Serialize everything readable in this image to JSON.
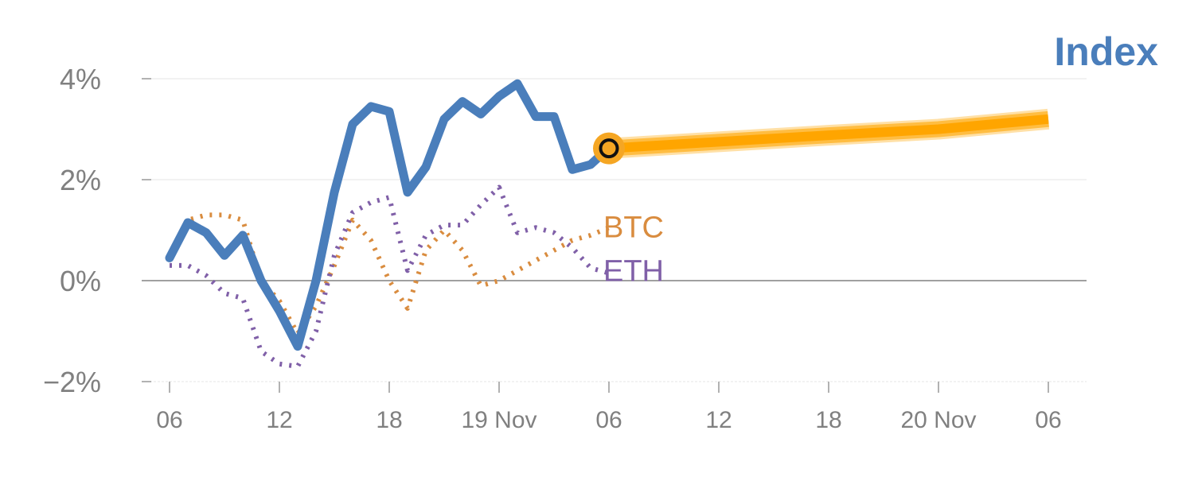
{
  "chart_data": {
    "type": "line",
    "title": "Index",
    "y_ticks": [
      "4%",
      "2%",
      "0%",
      "−2%"
    ],
    "y_tick_values": [
      4,
      2,
      0,
      -2
    ],
    "ylim": [
      -2,
      4
    ],
    "x_ticks": [
      "06",
      "12",
      "18",
      "19 Nov",
      "06",
      "12",
      "18",
      "20 Nov",
      "06"
    ],
    "x_tick_hours": [
      6,
      12,
      18,
      24,
      30,
      36,
      42,
      48,
      54
    ],
    "xlim_hours": [
      5,
      56
    ],
    "x_unit": "hours since 00:00, 18 Nov",
    "grid": true,
    "colors": {
      "index": "#4a7ebb",
      "btc": "#d98c3f",
      "eth": "#8060a8",
      "forecast": "#ffa500",
      "marker_fill": "#f5a623",
      "grid": "#e6e6e6",
      "zero_line": "#808080"
    },
    "series": [
      {
        "name": "Index",
        "style": "solid",
        "hours": [
          6,
          7,
          8,
          9,
          10,
          11,
          12,
          13,
          14,
          15,
          16,
          17,
          18,
          19,
          20,
          21,
          22,
          23,
          24,
          25,
          26,
          27,
          28,
          29,
          29.6
        ],
        "values": [
          0.45,
          1.15,
          0.95,
          0.5,
          0.9,
          0.0,
          -0.6,
          -1.3,
          0.0,
          1.75,
          3.1,
          3.45,
          3.35,
          1.75,
          2.25,
          3.2,
          3.55,
          3.3,
          3.65,
          3.9,
          3.25,
          3.25,
          2.2,
          2.3,
          2.5
        ]
      },
      {
        "name": "BTC",
        "style": "dotted",
        "hours": [
          6,
          7,
          8,
          9,
          10,
          11,
          12,
          13,
          14,
          15,
          16,
          17,
          18,
          19,
          20,
          21,
          22,
          23,
          24,
          25,
          26,
          27,
          28,
          29,
          30
        ],
        "values": [
          0.4,
          1.2,
          1.3,
          1.3,
          1.2,
          0.0,
          -0.4,
          -1.05,
          -0.5,
          0.3,
          1.2,
          0.8,
          0.0,
          -0.55,
          0.6,
          1.0,
          0.6,
          -0.1,
          0.0,
          0.2,
          0.4,
          0.6,
          0.8,
          0.9,
          1.05
        ]
      },
      {
        "name": "ETH",
        "style": "dotted",
        "hours": [
          6,
          7,
          8,
          9,
          10,
          11,
          12,
          13,
          14,
          15,
          16,
          17,
          18,
          19,
          20,
          21,
          22,
          23,
          24,
          25,
          26,
          27,
          28,
          29,
          30
        ],
        "values": [
          0.3,
          0.3,
          0.1,
          -0.25,
          -0.35,
          -1.4,
          -1.65,
          -1.7,
          -1.0,
          0.5,
          1.35,
          1.55,
          1.65,
          0.2,
          0.9,
          1.1,
          1.1,
          1.5,
          1.85,
          0.95,
          1.05,
          0.95,
          0.65,
          0.25,
          0.15
        ]
      },
      {
        "name": "Index forecast",
        "style": "thick-band",
        "hours": [
          30,
          36,
          42,
          48,
          54
        ],
        "values": [
          2.62,
          2.75,
          2.88,
          3.0,
          3.2
        ]
      }
    ],
    "marker": {
      "hours": 30,
      "value": 2.62
    },
    "series_labels": {
      "BTC": "BTC",
      "ETH": "ETH"
    }
  }
}
